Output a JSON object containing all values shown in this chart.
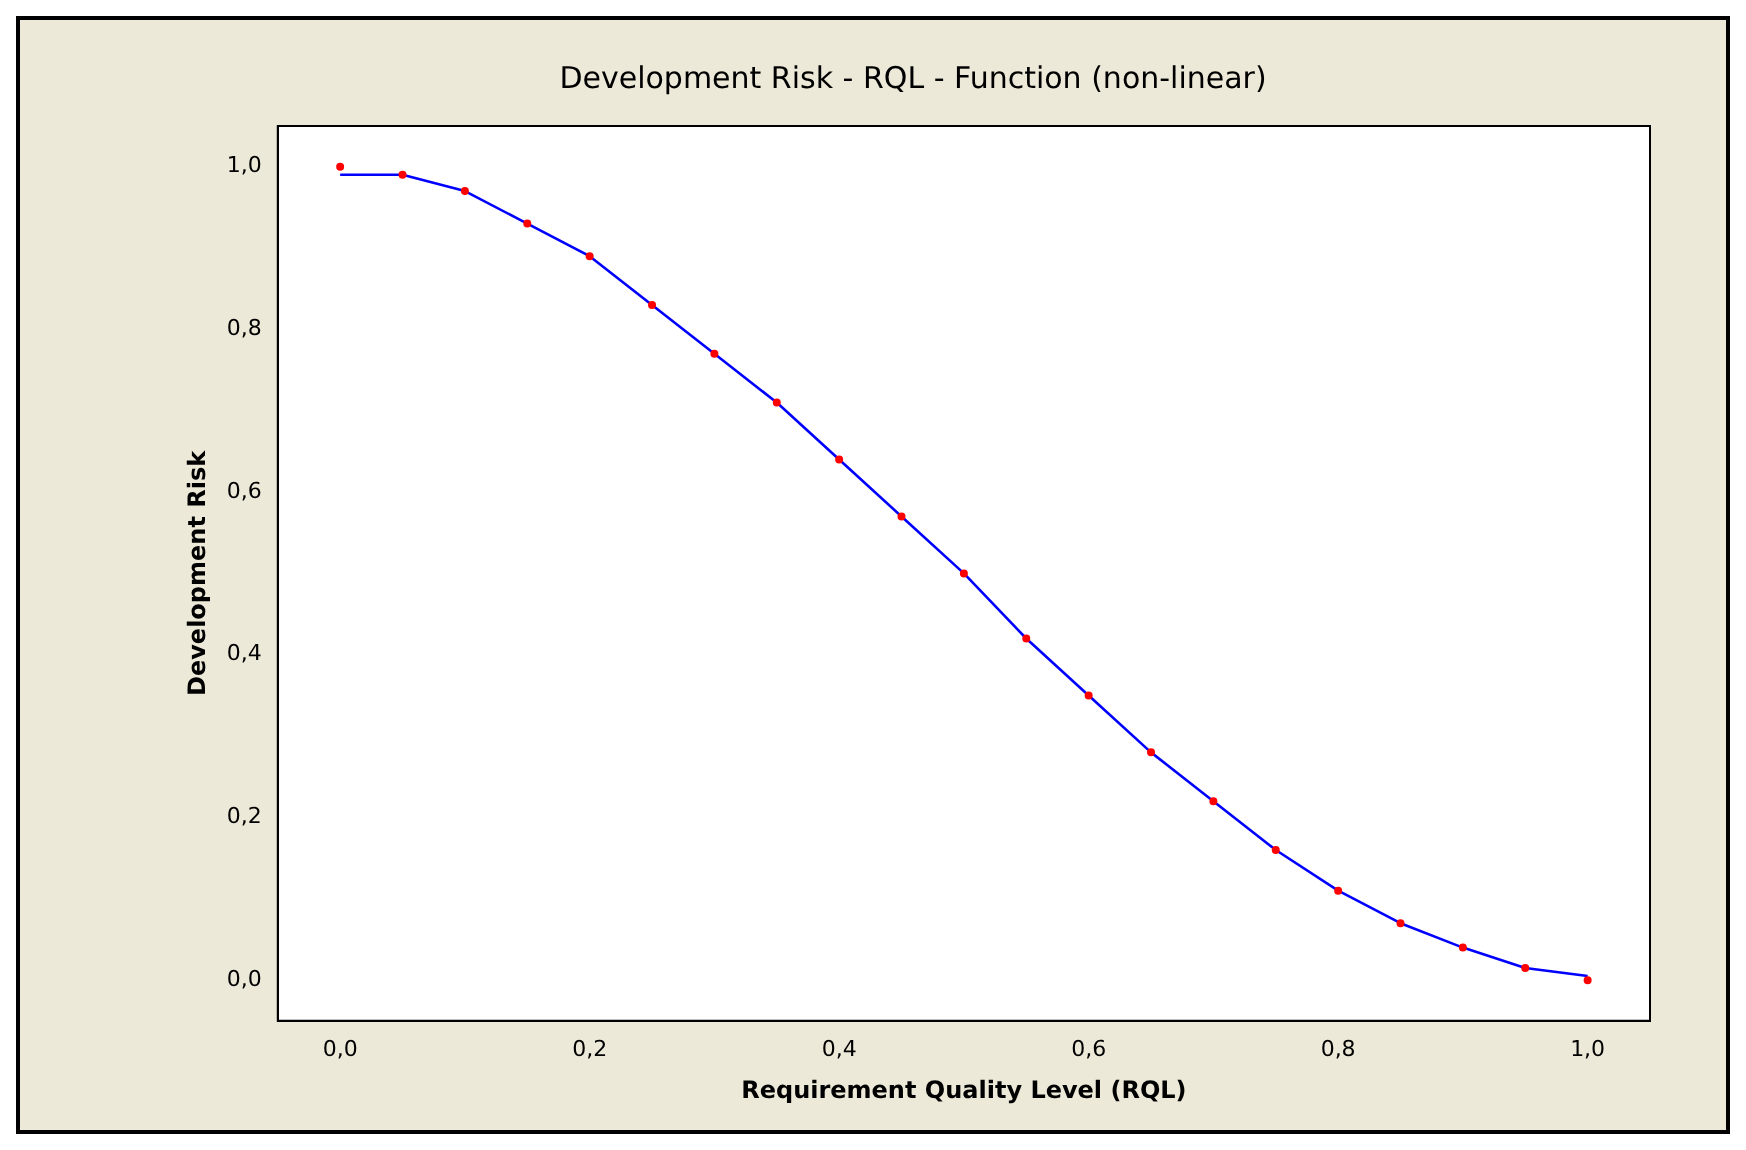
{
  "chart_data": {
    "type": "line",
    "title": "Development Risk - RQL - Function (non-linear)",
    "xlabel": "Requirement Quality Level (RQL)",
    "ylabel": "Development Risk",
    "x": [
      0,
      0.05,
      0.1,
      0.15,
      0.2,
      0.25,
      0.3,
      0.35,
      0.4,
      0.45,
      0.5,
      0.55,
      0.6,
      0.65,
      0.7,
      0.75,
      0.8,
      0.85,
      0.9,
      0.95,
      1.0
    ],
    "series": [
      {
        "type": "scatter",
        "marker": "circle",
        "color": "#ff0000",
        "values": [
          1.0,
          0.99,
          0.97,
          0.93,
          0.89,
          0.83,
          0.77,
          0.71,
          0.64,
          0.57,
          0.5,
          0.42,
          0.35,
          0.28,
          0.22,
          0.16,
          0.11,
          0.07,
          0.04,
          0.015,
          0.0
        ]
      },
      {
        "color": "#0000ff",
        "values": [
          0.99,
          0.99,
          0.97,
          0.93,
          0.89,
          0.83,
          0.77,
          0.71,
          0.64,
          0.57,
          0.5,
          0.42,
          0.35,
          0.28,
          0.22,
          0.16,
          0.11,
          0.07,
          0.04,
          0.015,
          0.005
        ]
      }
    ],
    "xlim": [
      -0.05,
      1.05
    ],
    "ylim": [
      -0.05,
      1.05
    ],
    "xticks": [
      {
        "value": 0,
        "label": "0,0"
      },
      {
        "value": 0.2,
        "label": "0,2"
      },
      {
        "value": 0.4,
        "label": "0,4"
      },
      {
        "value": 0.6,
        "label": "0,6"
      },
      {
        "value": 0.8,
        "label": "0,8"
      },
      {
        "value": 1,
        "label": "1,0"
      }
    ],
    "yticks": [
      {
        "value": 0,
        "label": "0,0"
      },
      {
        "value": 0.2,
        "label": "0,2"
      },
      {
        "value": 0.4,
        "label": "0,4"
      },
      {
        "value": 0.6,
        "label": "0,6"
      },
      {
        "value": 0.8,
        "label": "0,8"
      },
      {
        "value": 1,
        "label": "1,0"
      }
    ],
    "grid": false,
    "legend": false,
    "line_style": "solid"
  }
}
